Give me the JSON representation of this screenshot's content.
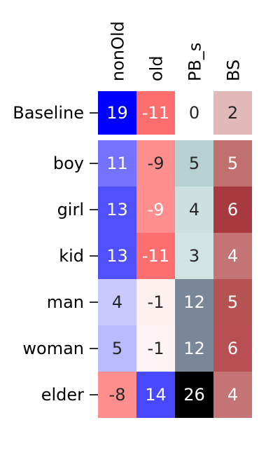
{
  "chart_data": {
    "type": "heatmap",
    "columns": [
      "nonOld",
      "old",
      "PB_s",
      "BS"
    ],
    "rows": [
      "Baseline",
      "boy",
      "girl",
      "kid",
      "man",
      "woman",
      "elder"
    ],
    "values": [
      [
        19,
        -11,
        0,
        2
      ],
      [
        11,
        -9,
        5,
        5
      ],
      [
        13,
        -9,
        4,
        6
      ],
      [
        13,
        -11,
        3,
        4
      ],
      [
        4,
        -1,
        12,
        5
      ],
      [
        5,
        -1,
        12,
        6
      ],
      [
        -8,
        14,
        26,
        4
      ]
    ],
    "cell_colors": [
      [
        "#0000ff",
        "#ff6e6e",
        "#ffffff",
        "#e2b9b9"
      ],
      [
        "#7373ff",
        "#ff8f8f",
        "#b7d1d1",
        "#c17070"
      ],
      [
        "#5050ff",
        "#ff8f8f",
        "#cde0e0",
        "#a83a3f"
      ],
      [
        "#5050ff",
        "#ff6e6e",
        "#d2e3e3",
        "#c47474"
      ],
      [
        "#c9c9ff",
        "#fff0f0",
        "#7a8799",
        "#b55252"
      ],
      [
        "#babaff",
        "#fff3f3",
        "#7a8799",
        "#b84f52"
      ],
      [
        "#ff8f8f",
        "#4848ff",
        "#000000",
        "#c47474"
      ]
    ],
    "text_colors": [
      [
        "#ffffff",
        "#ffffff",
        "#262626",
        "#262626"
      ],
      [
        "#ffffff",
        "#262626",
        "#262626",
        "#ffffff"
      ],
      [
        "#ffffff",
        "#ffffff",
        "#262626",
        "#ffffff"
      ],
      [
        "#ffffff",
        "#ffffff",
        "#262626",
        "#ffffff"
      ],
      [
        "#262626",
        "#262626",
        "#ffffff",
        "#ffffff"
      ],
      [
        "#262626",
        "#262626",
        "#ffffff",
        "#ffffff"
      ],
      [
        "#262626",
        "#ffffff",
        "#ffffff",
        "#ffffff"
      ]
    ],
    "separator_after_row": "Baseline",
    "colorbar": false,
    "grid": false
  }
}
